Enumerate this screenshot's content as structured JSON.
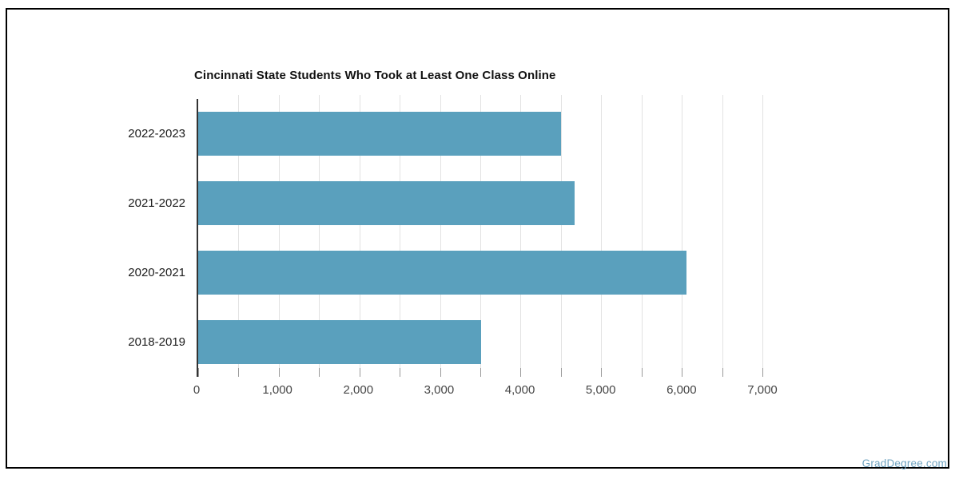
{
  "title": "Cincinnati State Students Who Took at Least One Class Online",
  "watermark": "GradDegree.com",
  "colors": {
    "bar": "#5AA0BD",
    "gridline": "#e2e2e2",
    "tick": "#9a9a9a",
    "axis": "#333333",
    "frame": "#000000",
    "watermark": "#6FA3C0"
  },
  "chart_data": {
    "type": "bar",
    "orientation": "horizontal",
    "title": "Cincinnati State Students Who Took at Least One Class Online",
    "categories": [
      "2022-2023",
      "2021-2022",
      "2020-2021",
      "2018-2019"
    ],
    "values": [
      4500,
      4670,
      6060,
      3505
    ],
    "xlabel": "",
    "ylabel": "",
    "xlim": [
      0,
      7000
    ],
    "x_tick_labels": [
      "0",
      "1,000",
      "2,000",
      "3,000",
      "4,000",
      "5,000",
      "6,000",
      "7,000"
    ],
    "x_tick_values": [
      0,
      1000,
      2000,
      3000,
      4000,
      5000,
      6000,
      7000
    ],
    "gridline_interval": 500,
    "grid": true,
    "legend": false
  }
}
